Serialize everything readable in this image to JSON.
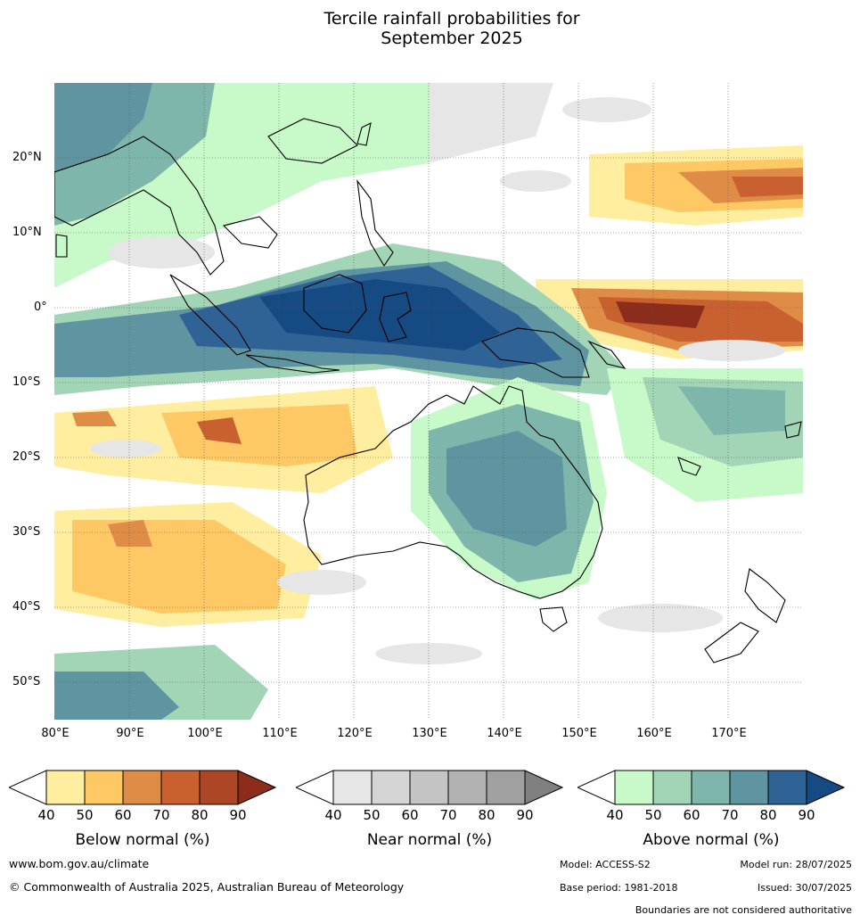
{
  "title_line1": "Tercile rainfall probabilities for",
  "title_line2": "September 2025",
  "latitudes": [
    "20°N",
    "10°N",
    "0°",
    "10°S",
    "20°S",
    "30°S",
    "40°S",
    "50°S"
  ],
  "longitudes": [
    "80°E",
    "90°E",
    "100°E",
    "110°E",
    "120°E",
    "130°E",
    "140°E",
    "150°E",
    "160°E",
    "170°E"
  ],
  "legends": [
    {
      "title": "Below normal (%)",
      "ticks": [
        "40",
        "50",
        "60",
        "70",
        "80",
        "90"
      ],
      "colors": [
        "#ffffff",
        "#ffeda0",
        "#fec965",
        "#de8c46",
        "#c8612f",
        "#ad4625",
        "#8c2d1b"
      ]
    },
    {
      "title": "Near normal (%)",
      "ticks": [
        "40",
        "50",
        "60",
        "70",
        "80",
        "90"
      ],
      "colors": [
        "#ffffff",
        "#e6e6e6",
        "#d5d5d5",
        "#c4c4c4",
        "#b2b2b2",
        "#a0a0a0",
        "#808080"
      ]
    },
    {
      "title": "Above normal (%)",
      "ticks": [
        "40",
        "50",
        "60",
        "70",
        "80",
        "90"
      ],
      "colors": [
        "#ffffff",
        "#c7f9c9",
        "#a2d4b6",
        "#7fb6ac",
        "#5f95a0",
        "#2f6395",
        "#164a83"
      ]
    }
  ],
  "footer": {
    "website": "www.bom.gov.au/climate",
    "copyright": "© Commonwealth of Australia 2025, Australian Bureau of Meteorology",
    "model": "Model: ACCESS-S2",
    "model_run": "Model run: 28/07/2025",
    "base_period": "Base period: 1981-2018",
    "issued": "Issued: 30/07/2025",
    "disclaimer": "Boundaries are not considered authoritative"
  }
}
